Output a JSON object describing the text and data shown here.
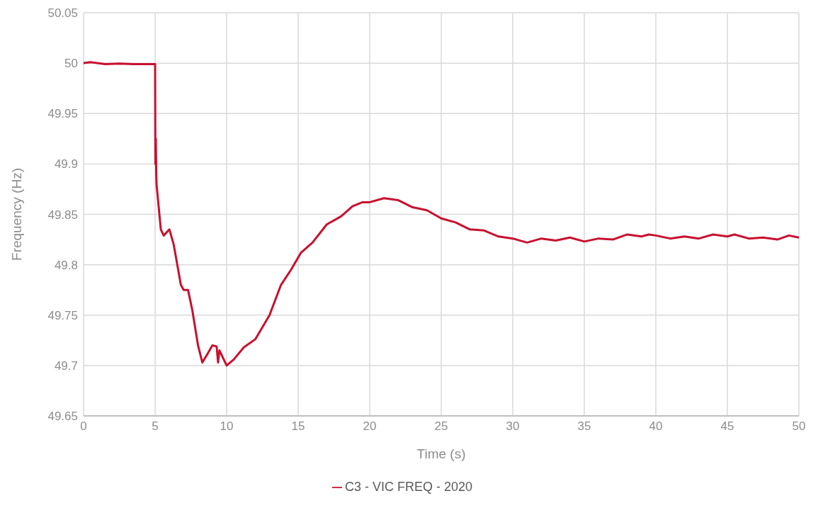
{
  "chart_data": {
    "type": "line",
    "xlabel": "Time (s)",
    "ylabel": "Frequency (Hz)",
    "x": [
      0,
      0.5,
      1.5,
      2.5,
      3.5,
      5.0,
      5.02,
      5.05,
      5.08,
      5.1,
      5.4,
      5.6,
      6.0,
      6.3,
      6.8,
      7.0,
      7.3,
      7.6,
      8.0,
      8.3,
      8.6,
      9.0,
      9.3,
      9.4,
      9.5,
      10.0,
      10.5,
      11.2,
      12.0,
      13.0,
      13.8,
      14.5,
      15.2,
      16,
      17,
      18,
      18.8,
      19.5,
      20,
      21,
      22,
      23,
      24,
      25,
      26,
      27,
      28,
      29,
      30,
      31,
      32,
      33,
      34,
      35,
      36,
      37,
      38,
      39,
      39.5,
      40,
      41,
      42,
      43,
      44,
      45,
      45.5,
      46.5,
      47.5,
      48.5,
      49.3,
      50
    ],
    "series": [
      {
        "name": "C3 - VIC FREQ - 2020",
        "color": "#c8102e",
        "values": [
          50.0,
          50.001,
          49.999,
          49.9995,
          49.999,
          49.999,
          49.9,
          49.925,
          49.89,
          49.88,
          49.835,
          49.829,
          49.835,
          49.82,
          49.78,
          49.775,
          49.775,
          49.755,
          49.72,
          49.703,
          49.71,
          49.72,
          49.719,
          49.703,
          49.715,
          49.7,
          49.706,
          49.718,
          49.726,
          49.75,
          49.78,
          49.795,
          49.812,
          49.822,
          49.84,
          49.848,
          49.858,
          49.862,
          49.862,
          49.866,
          49.864,
          49.857,
          49.854,
          49.846,
          49.842,
          49.835,
          49.834,
          49.828,
          49.826,
          49.822,
          49.826,
          49.824,
          49.827,
          49.823,
          49.826,
          49.825,
          49.83,
          49.828,
          49.83,
          49.829,
          49.826,
          49.828,
          49.826,
          49.83,
          49.828,
          49.83,
          49.826,
          49.827,
          49.825,
          49.829,
          49.827
        ]
      }
    ],
    "xlim": [
      0,
      50
    ],
    "xticks": [
      0,
      5,
      10,
      15,
      20,
      25,
      30,
      35,
      40,
      45,
      50
    ],
    "ylim": [
      49.65,
      50.05
    ],
    "yticks": [
      49.65,
      49.7,
      49.75,
      49.8,
      49.85,
      49.9,
      49.95,
      50,
      50.05
    ],
    "grid": true,
    "legend": "bottom",
    "marker": "none",
    "line_style": "solid"
  }
}
